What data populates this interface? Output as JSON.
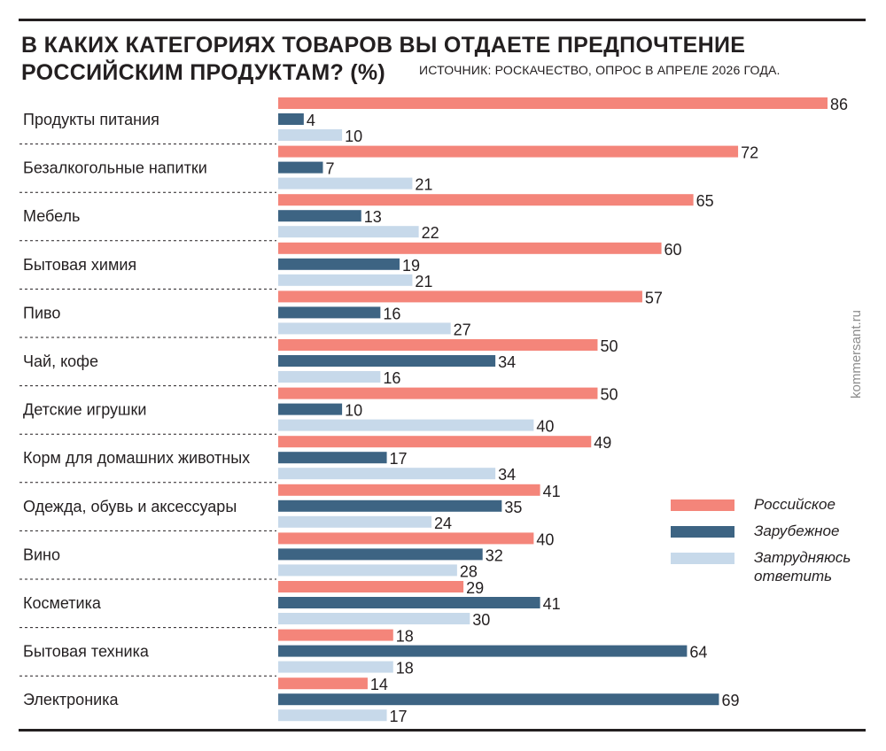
{
  "header": {
    "title_line1": "В КАКИХ КАТЕГОРИЯХ ТОВАРОВ ВЫ ОТДАЕТЕ ПРЕДПОЧТЕНИЕ",
    "title_line2": "РОССИЙСКИМ ПРОДУКТАМ? (%)",
    "source": "ИСТОЧНИК: РОСКАЧЕСТВО, ОПРОС В АПРЕЛЕ 2026 ГОДА."
  },
  "watermark": "kommersant.ru",
  "chart_data": {
    "type": "bar",
    "orientation": "horizontal",
    "title": "В КАКИХ КАТЕГОРИЯХ ТОВАРОВ ВЫ ОТДАЕТЕ ПРЕДПОЧТЕНИЕ РОССИЙСКИМ ПРОДУКТАМ? (%)",
    "categories": [
      "Продукты питания",
      "Безалкогольные напитки",
      "Мебель",
      "Бытовая химия",
      "Пиво",
      "Чай, кофе",
      "Детские игрушки",
      "Корм для домашних животных",
      "Одежда, обувь и аксессуары",
      "Вино",
      "Косметика",
      "Бытовая техника",
      "Электроника"
    ],
    "series": [
      {
        "name": "Российское",
        "color": "#f4857a",
        "values": [
          86,
          72,
          65,
          60,
          57,
          50,
          50,
          49,
          41,
          40,
          29,
          18,
          14
        ]
      },
      {
        "name": "Зарубежное",
        "color": "#3d6483",
        "values": [
          4,
          7,
          13,
          19,
          16,
          34,
          10,
          17,
          35,
          32,
          41,
          64,
          69
        ]
      },
      {
        "name": "Затрудняюсь ответить",
        "color": "#c7d9ea",
        "values": [
          10,
          21,
          22,
          21,
          27,
          16,
          40,
          34,
          24,
          28,
          30,
          18,
          17
        ]
      }
    ],
    "xlim": [
      0,
      86
    ],
    "grid": false,
    "legend_position": "right"
  }
}
